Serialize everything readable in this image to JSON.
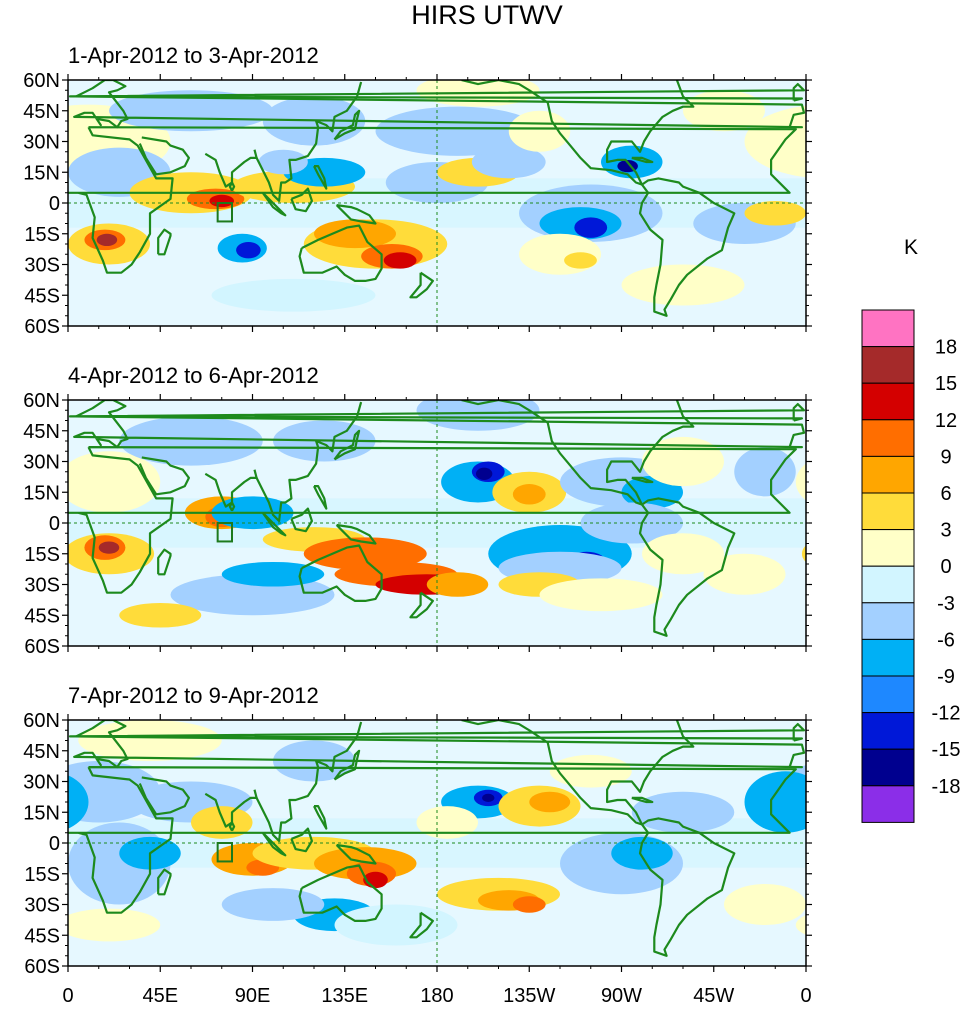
{
  "title": "HIRS UTWV",
  "unit_label": "K",
  "panels": [
    {
      "label": "1-Apr-2012 to 3-Apr-2012"
    },
    {
      "label": "4-Apr-2012 to 6-Apr-2012"
    },
    {
      "label": "7-Apr-2012 to 9-Apr-2012"
    }
  ],
  "lat_ticks": [
    "60N",
    "45N",
    "30N",
    "15N",
    "0",
    "15S",
    "30S",
    "45S",
    "60S"
  ],
  "lon_ticks": [
    "0",
    "45E",
    "90E",
    "135E",
    "180",
    "135W",
    "90W",
    "45W",
    "0"
  ],
  "colorbar": {
    "levels": [
      "18",
      "15",
      "12",
      "9",
      "6",
      "3",
      "0",
      "-3",
      "-6",
      "-9",
      "-12",
      "-15",
      "-18"
    ],
    "colors": [
      "#ff73c2",
      "#a52a2a",
      "#d40000",
      "#ff6e00",
      "#ffa600",
      "#ffdc3a",
      "#ffffc8",
      "#d2f5ff",
      "#a3d0ff",
      "#00b0f5",
      "#1e88ff",
      "#0018d8",
      "#00008f",
      "#8b2ee8"
    ]
  },
  "map_colors": {
    "ocean": "#e6f8ff",
    "coast": "#1d8a1d",
    "highlight_box": "#1d7a1d"
  }
}
